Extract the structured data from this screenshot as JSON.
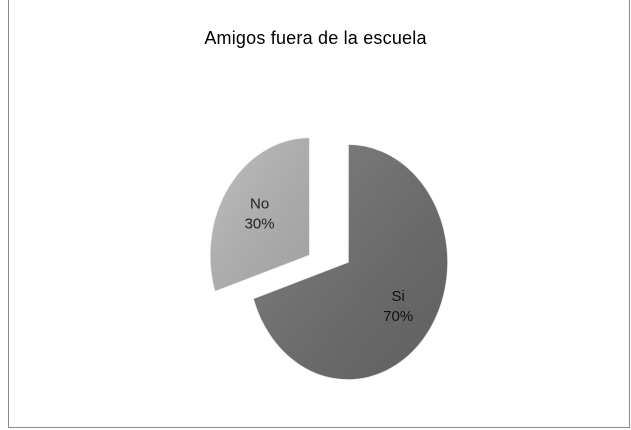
{
  "chart_data": {
    "type": "pie",
    "title": "Amigos fuera de la escuela",
    "slices": [
      {
        "label": "Si",
        "value": 70,
        "percent_label": "70%",
        "color": "#6b6b6b",
        "exploded": false
      },
      {
        "label": "No",
        "value": 30,
        "percent_label": "30%",
        "color": "#b4b4b4",
        "exploded": true
      }
    ],
    "legend": "none"
  }
}
